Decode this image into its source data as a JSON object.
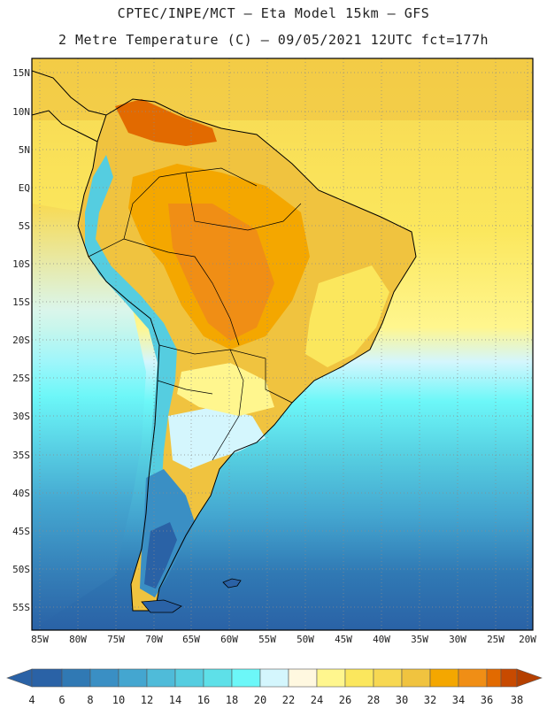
{
  "title": {
    "line1": "CPTEC/INPE/MCT –  Eta Model 15km – GFS",
    "line2": "2 Metre Temperature (C) – 09/05/2021 12UTC fct=177h"
  },
  "axes": {
    "lat_labels": [
      "15N",
      "10N",
      "5N",
      "EQ",
      "5S",
      "10S",
      "15S",
      "20S",
      "25S",
      "30S",
      "35S",
      "40S",
      "45S",
      "50S",
      "55S"
    ],
    "lon_labels": [
      "85W",
      "80W",
      "75W",
      "70W",
      "65W",
      "60W",
      "55W",
      "50W",
      "45W",
      "40W",
      "35W",
      "30W",
      "25W",
      "20W"
    ]
  },
  "colorbar": {
    "ticks": [
      "4",
      "6",
      "8",
      "10",
      "12",
      "14",
      "16",
      "18",
      "20",
      "22",
      "24",
      "26",
      "28",
      "30",
      "32",
      "34",
      "36",
      "38"
    ],
    "colors": [
      "#2a62a6",
      "#3079b4",
      "#3a8fc4",
      "#44a6d0",
      "#4fbbd9",
      "#55cde0",
      "#5ee0e8",
      "#6cf7f8",
      "#d4f6fd",
      "#fff8e0",
      "#fff68e",
      "#fbe75d",
      "#f7d852",
      "#f0c33f",
      "#f4a700",
      "#f08e15",
      "#e26a00",
      "#c84a00",
      "#b54000"
    ]
  },
  "map": {
    "region": "South America",
    "variable": "2 Metre Temperature (C)",
    "lon_range": [
      -86,
      -20
    ],
    "lat_range": [
      -58,
      17
    ]
  }
}
